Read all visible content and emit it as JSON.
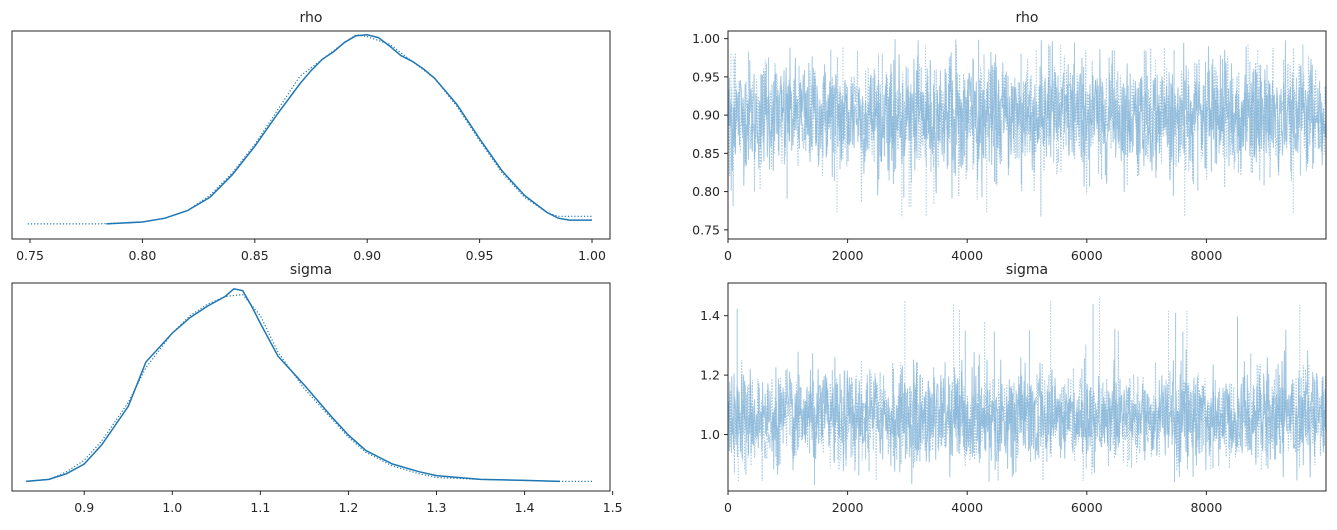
{
  "colors": {
    "kde": "#1f77b4",
    "trace": "#7fb0d6",
    "frame": "#262626",
    "background": "#ffffff"
  },
  "chart_data": [
    {
      "type": "line",
      "panel": "kde",
      "title": "rho",
      "xlabel": "",
      "ylabel": "",
      "xlim": [
        0.742,
        1.008
      ],
      "ylim": [
        -0.08,
        1.02
      ],
      "x_ticks": [
        "0.75",
        "0.80",
        "0.85",
        "0.90",
        "0.95",
        "1.00"
      ],
      "y_ticks": [],
      "grid": false,
      "series": [
        {
          "style": "solid",
          "x": [
            0.784,
            0.8,
            0.81,
            0.82,
            0.83,
            0.84,
            0.85,
            0.86,
            0.87,
            0.875,
            0.88,
            0.885,
            0.89,
            0.895,
            0.9,
            0.905,
            0.91,
            0.915,
            0.92,
            0.925,
            0.93,
            0.94,
            0.95,
            0.96,
            0.97,
            0.98,
            0.985,
            0.99,
            1.0
          ],
          "y": [
            0.0,
            0.01,
            0.03,
            0.07,
            0.14,
            0.26,
            0.41,
            0.58,
            0.74,
            0.81,
            0.87,
            0.91,
            0.96,
            0.995,
            1.0,
            0.985,
            0.94,
            0.89,
            0.86,
            0.82,
            0.77,
            0.63,
            0.45,
            0.28,
            0.15,
            0.06,
            0.03,
            0.02,
            0.02
          ]
        },
        {
          "style": "dotted",
          "x": [
            0.749,
            0.78,
            0.8,
            0.81,
            0.82,
            0.83,
            0.84,
            0.85,
            0.86,
            0.87,
            0.88,
            0.89,
            0.895,
            0.9,
            0.905,
            0.91,
            0.92,
            0.93,
            0.94,
            0.95,
            0.96,
            0.97,
            0.98,
            0.985,
            0.99,
            1.0
          ],
          "y": [
            0.0,
            0.0,
            0.01,
            0.03,
            0.07,
            0.15,
            0.27,
            0.42,
            0.6,
            0.78,
            0.87,
            0.96,
            1.0,
            0.99,
            0.97,
            0.95,
            0.86,
            0.77,
            0.62,
            0.44,
            0.27,
            0.14,
            0.06,
            0.04,
            0.04,
            0.04
          ]
        }
      ]
    },
    {
      "type": "line",
      "panel": "trace",
      "title": "rho",
      "xlabel": "",
      "ylabel": "",
      "xlim": [
        0,
        10000
      ],
      "ylim": [
        0.738,
        1.01
      ],
      "x_ticks": [
        "0",
        "2000",
        "4000",
        "6000",
        "8000"
      ],
      "y_ticks": [
        "0.75",
        "0.80",
        "0.85",
        "0.90",
        "0.95",
        "1.00"
      ],
      "grid": false,
      "draws": 10000,
      "chains": 2,
      "series": [
        {
          "style": "solid",
          "center": 0.9,
          "typical_range": [
            0.84,
            0.96
          ],
          "min": 0.79,
          "max": 1.0
        },
        {
          "style": "dotted",
          "center": 0.9,
          "typical_range": [
            0.84,
            0.96
          ],
          "min": 0.749,
          "max": 0.995
        }
      ]
    },
    {
      "type": "line",
      "panel": "kde",
      "title": "sigma",
      "xlabel": "",
      "ylabel": "",
      "xlim": [
        0.818,
        1.497
      ],
      "ylim": [
        -0.05,
        1.03
      ],
      "x_ticks": [
        "0.9",
        "1.0",
        "1.1",
        "1.2",
        "1.3",
        "1.4",
        "1.5"
      ],
      "y_ticks": [],
      "grid": false,
      "series": [
        {
          "style": "solid",
          "x": [
            0.834,
            0.86,
            0.88,
            0.9,
            0.92,
            0.95,
            0.97,
            1.0,
            1.02,
            1.04,
            1.06,
            1.07,
            1.08,
            1.09,
            1.1,
            1.12,
            1.15,
            1.18,
            1.2,
            1.22,
            1.25,
            1.28,
            1.3,
            1.35,
            1.4,
            1.44
          ],
          "y": [
            0.0,
            0.01,
            0.04,
            0.09,
            0.19,
            0.39,
            0.62,
            0.77,
            0.85,
            0.91,
            0.96,
            1.0,
            0.99,
            0.91,
            0.82,
            0.65,
            0.5,
            0.34,
            0.24,
            0.16,
            0.09,
            0.05,
            0.03,
            0.01,
            0.005,
            0.0
          ]
        },
        {
          "style": "dotted",
          "x": [
            0.834,
            0.86,
            0.88,
            0.9,
            0.92,
            0.95,
            0.97,
            1.0,
            1.02,
            1.04,
            1.06,
            1.08,
            1.1,
            1.12,
            1.15,
            1.18,
            1.2,
            1.22,
            1.25,
            1.28,
            1.3,
            1.35,
            1.4,
            1.44,
            1.477
          ],
          "y": [
            0.0,
            0.01,
            0.05,
            0.11,
            0.21,
            0.41,
            0.59,
            0.77,
            0.86,
            0.92,
            0.96,
            0.97,
            0.86,
            0.67,
            0.48,
            0.33,
            0.23,
            0.15,
            0.08,
            0.04,
            0.02,
            0.01,
            0.005,
            0.0,
            0.0
          ]
        }
      ]
    },
    {
      "type": "line",
      "panel": "trace",
      "title": "sigma",
      "xlabel": "",
      "ylabel": "",
      "xlim": [
        0,
        10000
      ],
      "ylim": [
        0.81,
        1.51
      ],
      "x_ticks": [
        "0",
        "2000",
        "4000",
        "6000",
        "8000"
      ],
      "y_ticks": [
        "1.0",
        "1.2",
        "1.4"
      ],
      "grid": false,
      "draws": 10000,
      "chains": 2,
      "series": [
        {
          "style": "solid",
          "center": 1.06,
          "typical_range": [
            0.94,
            1.2
          ],
          "min": 0.83,
          "max": 1.44
        },
        {
          "style": "dotted",
          "center": 1.06,
          "typical_range": [
            0.94,
            1.2
          ],
          "min": 0.84,
          "max": 1.48
        }
      ]
    }
  ]
}
